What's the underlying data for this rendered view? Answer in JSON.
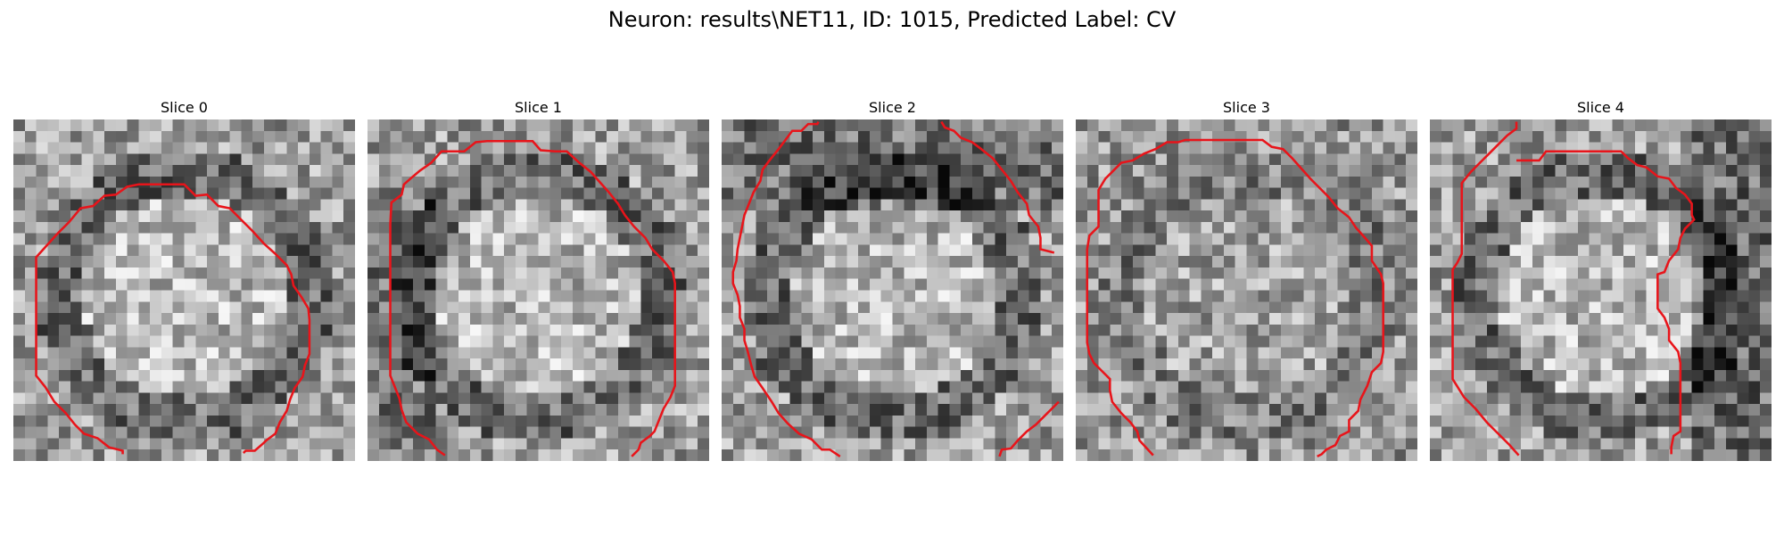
{
  "figure": {
    "title": "Neuron: results\\NET11, ID: 1015, Predicted Label: CV"
  },
  "panels": [
    {
      "title": "Slice 0",
      "seed": 11,
      "pattern": "ring"
    },
    {
      "title": "Slice 1",
      "seed": 23,
      "pattern": "left"
    },
    {
      "title": "Slice 2",
      "seed": 37,
      "pattern": "top"
    },
    {
      "title": "Slice 3",
      "seed": 41,
      "pattern": "flat"
    },
    {
      "title": "Slice 4",
      "seed": 59,
      "pattern": "right"
    }
  ],
  "contour_color": "#e8141a",
  "colormap": "grayscale"
}
